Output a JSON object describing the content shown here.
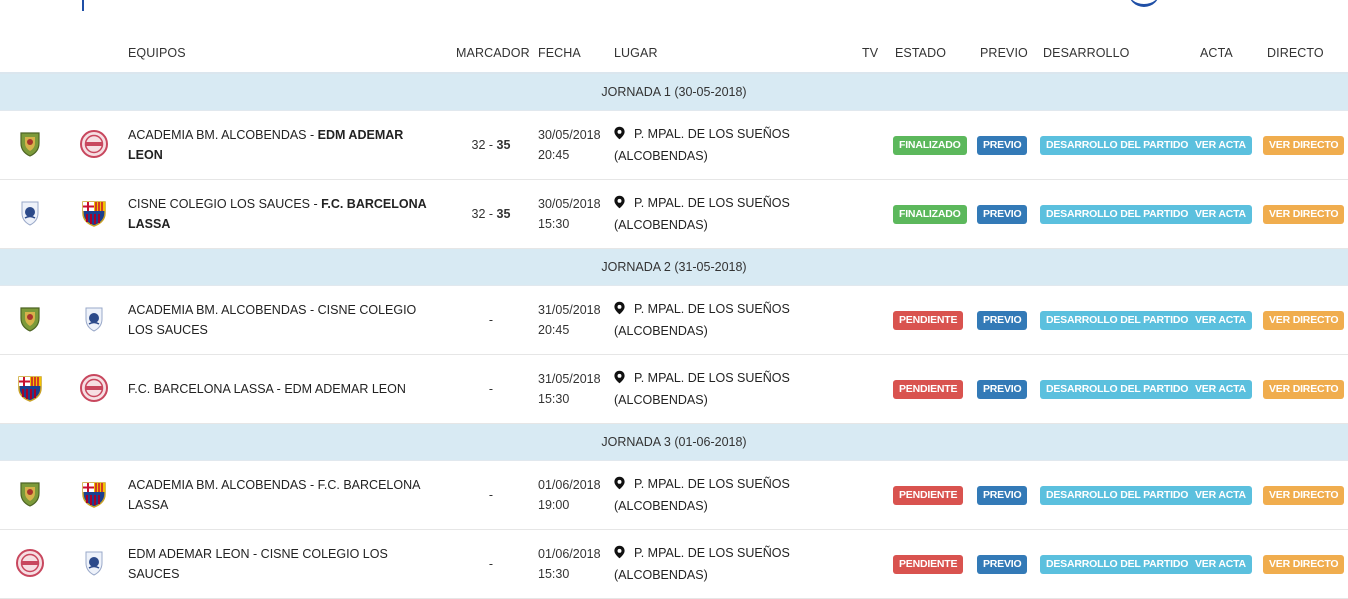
{
  "header": {
    "cols": [
      "EQUIPOS",
      "MARCADOR",
      "FECHA",
      "LUGAR",
      "TV",
      "ESTADO",
      "PREVIO",
      "DESARROLLO",
      "ACTA",
      "DIRECTO"
    ]
  },
  "colors": {
    "finalizado": "#5cb85c",
    "pendiente": "#d9534f",
    "previo": "#337ab7",
    "desarrollo": "#5bc0de",
    "acta": "#5bc0de",
    "directo": "#f0ad4e",
    "jornada_bg": "#d8eaf3"
  },
  "jornadas": [
    {
      "title": "JORNADA 1 (30-05-2018)",
      "matches": [
        {
          "logo1": "alcobendas-crest-icon",
          "logo2": "ademar-crest-icon",
          "local": "ACADEMIA BM. ALCOBENDAS",
          "visitor": "EDM ADEMAR LEON",
          "winner": "visitor",
          "score_local": "32",
          "score_visitor": "35",
          "date": "30/05/2018",
          "time": "20:45",
          "venue": "P. MPAL. DE LOS SUEÑOS",
          "venue_city": "(ALCOBENDAS)",
          "status": "FINALIZADO",
          "status_type": "fin",
          "previo": "PREVIO",
          "desarrollo": "DESARROLLO DEL PARTIDO",
          "acta": "VER ACTA",
          "directo": "VER DIRECTO"
        },
        {
          "logo1": "cisne-crest-icon",
          "logo2": "barcelona-crest-icon",
          "local": "CISNE COLEGIO LOS SAUCES",
          "visitor": "F.C. BARCELONA LASSA",
          "winner": "visitor",
          "score_local": "32",
          "score_visitor": "35",
          "date": "30/05/2018",
          "time": "15:30",
          "venue": "P. MPAL. DE LOS SUEÑOS",
          "venue_city": "(ALCOBENDAS)",
          "status": "FINALIZADO",
          "status_type": "fin",
          "previo": "PREVIO",
          "desarrollo": "DESARROLLO DEL PARTIDO",
          "acta": "VER ACTA",
          "directo": "VER DIRECTO"
        }
      ]
    },
    {
      "title": "JORNADA 2 (31-05-2018)",
      "matches": [
        {
          "logo1": "alcobendas-crest-icon",
          "logo2": "cisne-crest-icon",
          "local": "ACADEMIA BM. ALCOBENDAS",
          "visitor": "CISNE COLEGIO LOS SAUCES",
          "winner": "",
          "score": "-",
          "date": "31/05/2018",
          "time": "20:45",
          "venue": "P. MPAL. DE LOS SUEÑOS",
          "venue_city": "(ALCOBENDAS)",
          "status": "PENDIENTE",
          "status_type": "pend",
          "previo": "PREVIO",
          "desarrollo": "DESARROLLO DEL PARTIDO",
          "acta": "VER ACTA",
          "directo": "VER DIRECTO"
        },
        {
          "logo1": "barcelona-crest-icon",
          "logo2": "ademar-crest-icon",
          "local": "F.C. BARCELONA LASSA",
          "visitor": "EDM ADEMAR LEON",
          "winner": "",
          "score": "-",
          "date": "31/05/2018",
          "time": "15:30",
          "venue": "P. MPAL. DE LOS SUEÑOS",
          "venue_city": "(ALCOBENDAS)",
          "status": "PENDIENTE",
          "status_type": "pend",
          "previo": "PREVIO",
          "desarrollo": "DESARROLLO DEL PARTIDO",
          "acta": "VER ACTA",
          "directo": "VER DIRECTO"
        }
      ]
    },
    {
      "title": "JORNADA 3 (01-06-2018)",
      "matches": [
        {
          "logo1": "alcobendas-crest-icon",
          "logo2": "barcelona-crest-icon",
          "local": "ACADEMIA BM. ALCOBENDAS",
          "visitor": "F.C. BARCELONA LASSA",
          "winner": "",
          "score": "-",
          "date": "01/06/2018",
          "time": "19:00",
          "venue": "P. MPAL. DE LOS SUEÑOS",
          "venue_city": "(ALCOBENDAS)",
          "status": "PENDIENTE",
          "status_type": "pend",
          "previo": "PREVIO",
          "desarrollo": "DESARROLLO DEL PARTIDO",
          "acta": "VER ACTA",
          "directo": "VER DIRECTO"
        },
        {
          "logo1": "ademar-crest-icon",
          "logo2": "cisne-crest-icon",
          "local": "EDM ADEMAR LEON",
          "visitor": "CISNE COLEGIO LOS SAUCES",
          "winner": "",
          "score": "-",
          "date": "01/06/2018",
          "time": "15:30",
          "venue": "P. MPAL. DE LOS SUEÑOS",
          "venue_city": "(ALCOBENDAS)",
          "status": "PENDIENTE",
          "status_type": "pend",
          "previo": "PREVIO",
          "desarrollo": "DESARROLLO DEL PARTIDO",
          "acta": "VER ACTA",
          "directo": "VER DIRECTO"
        }
      ]
    }
  ]
}
